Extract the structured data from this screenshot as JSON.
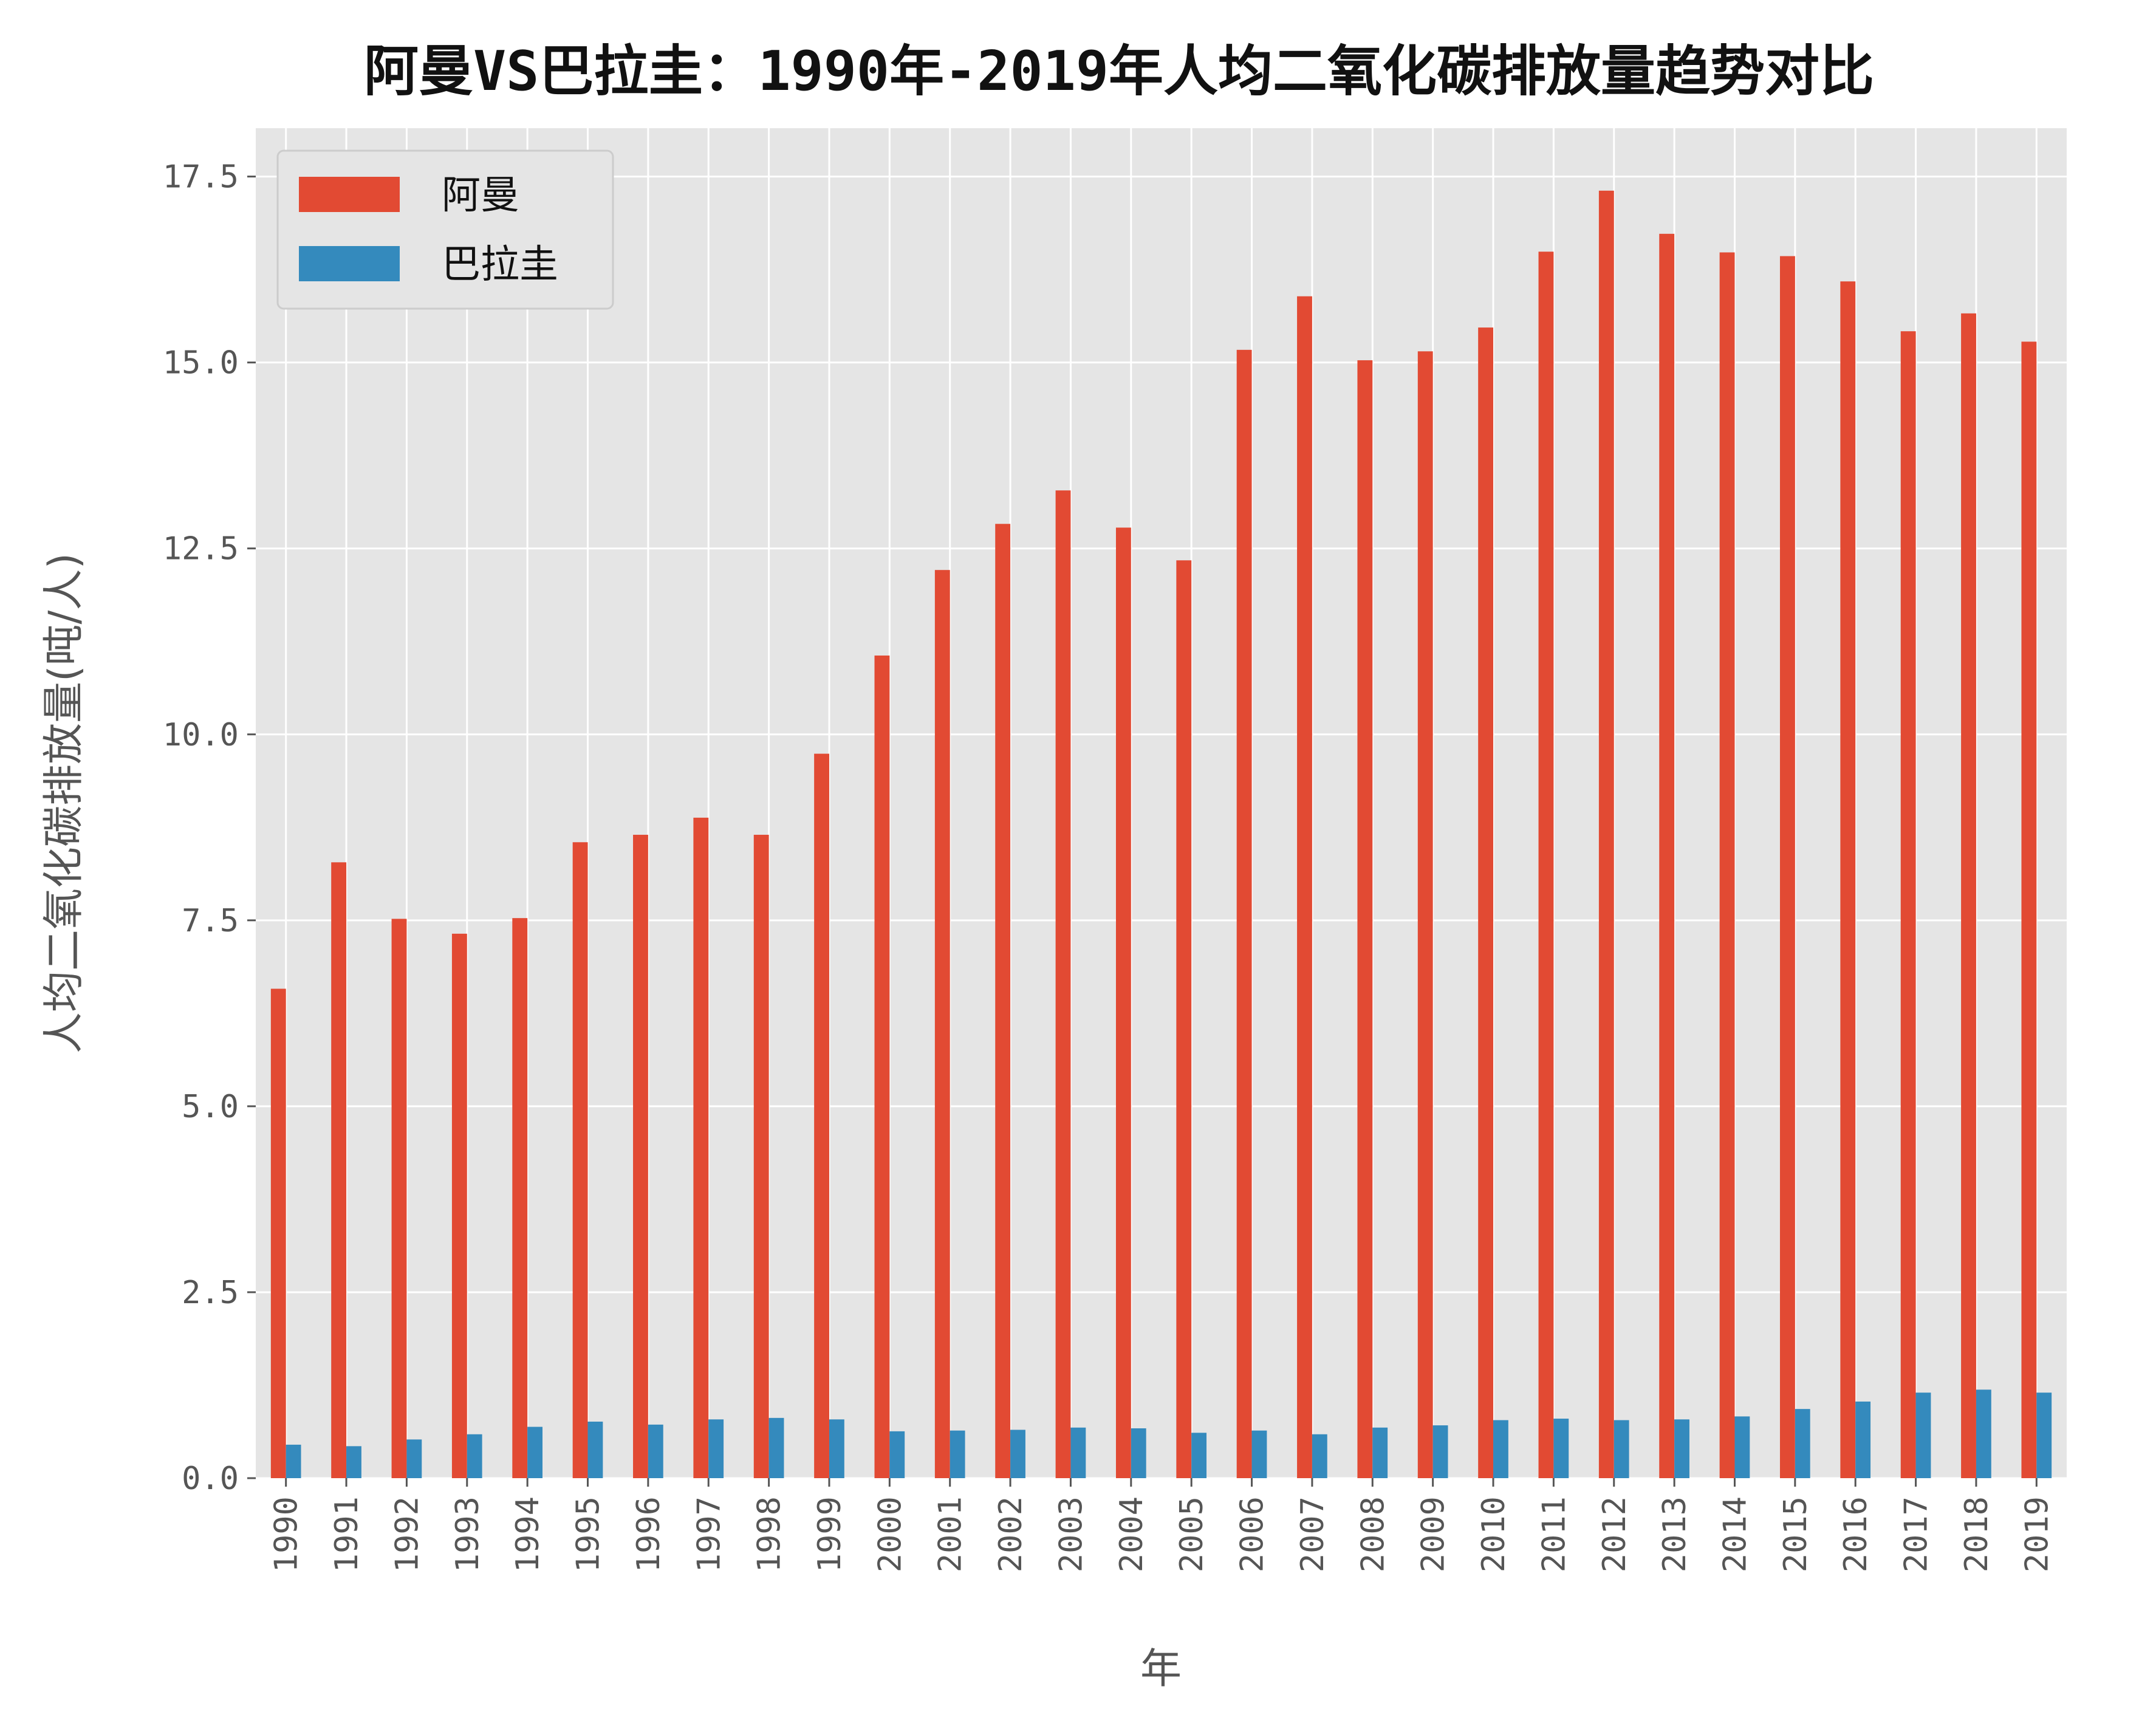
{
  "chart_data": {
    "type": "bar",
    "title": "阿曼VS巴拉圭：1990年-2019年人均二氧化碳排放量趋势对比",
    "xlabel": "年",
    "ylabel": "人均二氧化碳排放量(吨/人)",
    "ylim": [
      0,
      18.15
    ],
    "yticks": [
      "0.0",
      "2.5",
      "5.0",
      "7.5",
      "10.0",
      "12.5",
      "15.0",
      "17.5"
    ],
    "grid": true,
    "legend_position": "top-left",
    "categories": [
      "1990",
      "1991",
      "1992",
      "1993",
      "1994",
      "1995",
      "1996",
      "1997",
      "1998",
      "1999",
      "2000",
      "2001",
      "2002",
      "2003",
      "2004",
      "2005",
      "2006",
      "2007",
      "2008",
      "2009",
      "2010",
      "2011",
      "2012",
      "2013",
      "2014",
      "2015",
      "2016",
      "2017",
      "2018",
      "2019"
    ],
    "series": [
      {
        "name": "阿曼",
        "color": "#e24a33",
        "values": [
          6.58,
          8.28,
          7.52,
          7.32,
          7.53,
          8.55,
          8.65,
          8.88,
          8.65,
          9.74,
          11.06,
          12.21,
          12.83,
          13.28,
          12.78,
          12.34,
          15.17,
          15.89,
          15.03,
          15.15,
          15.47,
          16.49,
          17.31,
          16.73,
          16.48,
          16.43,
          16.09,
          15.42,
          15.66,
          15.28
        ]
      },
      {
        "name": "巴拉圭",
        "color": "#348abd",
        "values": [
          0.45,
          0.43,
          0.52,
          0.59,
          0.69,
          0.76,
          0.72,
          0.79,
          0.81,
          0.79,
          0.63,
          0.64,
          0.65,
          0.68,
          0.67,
          0.61,
          0.64,
          0.59,
          0.68,
          0.71,
          0.78,
          0.8,
          0.78,
          0.79,
          0.83,
          0.93,
          1.03,
          1.15,
          1.19,
          1.15
        ]
      }
    ]
  }
}
